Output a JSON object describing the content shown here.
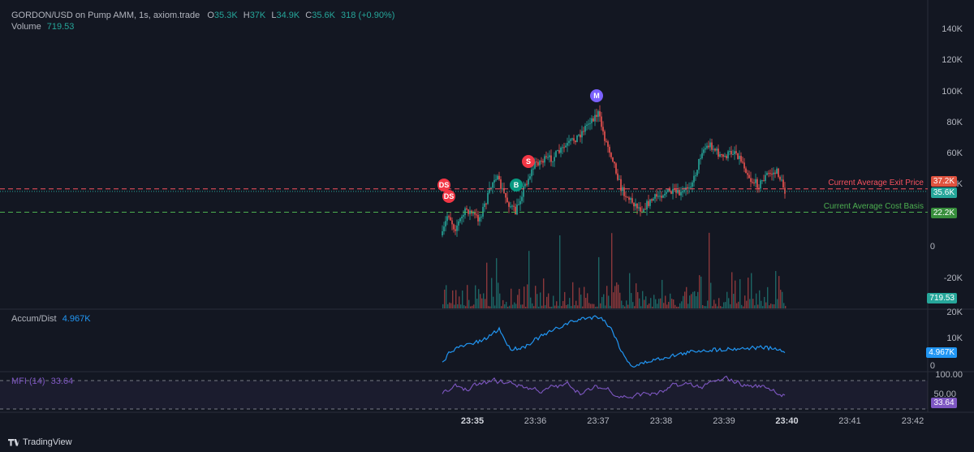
{
  "header": {
    "symbol": "GORDON/USD on Pump AMM, 1s, axiom.trade",
    "o_label": "O",
    "o_val": "35.3K",
    "h_label": "H",
    "h_val": "37K",
    "l_label": "L",
    "l_val": "34.9K",
    "c_label": "C",
    "c_val": "35.6K",
    "change": "318 (+0.90%)",
    "volume_label": "Volume",
    "volume_val": "719.53"
  },
  "price_axis": [
    "140K",
    "120K",
    "100K",
    "80K",
    "60K",
    "40K",
    "0",
    "-20K"
  ],
  "price_lines": {
    "exit_label": "Current Average Exit Price",
    "exit_tag": "37.2K",
    "exit_value": 37200,
    "current_tag": "35.6K",
    "current_value": 35600,
    "cost_label": "Current Average Cost Basis",
    "cost_tag": "22.2K",
    "cost_value": 22200,
    "volume_tag": "719.53"
  },
  "markers": [
    {
      "text": "DS",
      "color": "#f23645",
      "time": "23:34:50",
      "price": 40000
    },
    {
      "text": "DS",
      "color": "#f23645",
      "time": "23:34:52",
      "price": 32000
    },
    {
      "text": "B",
      "color": "#089981",
      "time": "23:35:40",
      "price": 40000
    },
    {
      "text": "S",
      "color": "#f23645",
      "time": "23:36:05",
      "price": 58000
    },
    {
      "text": "M",
      "color": "#7b61ff",
      "time": "23:37:00",
      "price": 97000
    }
  ],
  "ad_pane": {
    "label": "Accum/Dist",
    "value": "4.967K",
    "axis": [
      "20K",
      "10K",
      "0"
    ],
    "tag": "4.967K"
  },
  "mfi_pane": {
    "label": "MFI (14)",
    "value": "33.64",
    "axis": [
      "100.00",
      "50.00"
    ],
    "tag": "33.64"
  },
  "time_axis": [
    {
      "t": "23:35",
      "bold": true
    },
    {
      "t": "23:36",
      "bold": false
    },
    {
      "t": "23:37",
      "bold": false
    },
    {
      "t": "23:38",
      "bold": false
    },
    {
      "t": "23:39",
      "bold": false
    },
    {
      "t": "23:40",
      "bold": true
    },
    {
      "t": "23:41",
      "bold": false
    },
    {
      "t": "23:42",
      "bold": false
    }
  ],
  "footer": {
    "brand": "TradingView"
  },
  "colors": {
    "up": "#26a69a",
    "down": "#ef5350",
    "exit": "#f7525f",
    "cost": "#4caf50",
    "ad": "#2962ff",
    "mfi": "#7e57c2"
  }
}
